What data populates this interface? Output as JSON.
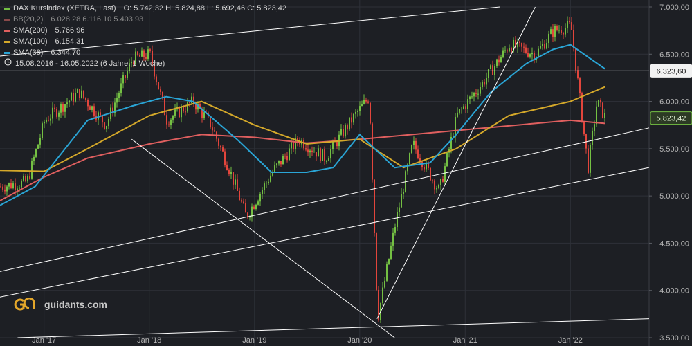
{
  "brand": "guidants.com",
  "legend": {
    "title": "DAX Kursindex (XETRA, Last)",
    "ohlc": "O: 5.742,32   H: 5.824,88   L: 5.692,46   C: 5.823,42",
    "indicators": [
      {
        "label": "BB(20,2)",
        "values": "6.028,28  6.116,10  5.403,93",
        "color": "#8a4a4a",
        "dim": true
      },
      {
        "label": "SMA(200)",
        "values": "5.766,96",
        "color": "#e05f5f",
        "dim": false
      },
      {
        "label": "SMA(100)",
        "values": "6.154,31",
        "color": "#d4a82a",
        "dim": false
      },
      {
        "label": "SMA(38)",
        "values": "6.344,70",
        "color": "#2aa5d6",
        "dim": false
      }
    ],
    "period": "15.08.2016 - 16.05.2022   (6 Jahre, 1 Woche)"
  },
  "chart_data": {
    "type": "candlestick",
    "title": "DAX Kursindex (XETRA, Last)",
    "ylim": [
      3500,
      7000
    ],
    "y_ticks": [
      "7.000,00",
      "6.500,00",
      "6.000,00",
      "5.500,00",
      "5.000,00",
      "4.500,00",
      "4.000,00",
      "3.500,00"
    ],
    "x_ticks": [
      "Jan '17",
      "Jan '18",
      "Jan '19",
      "Jan '20",
      "Jan '21",
      "Jan '22"
    ],
    "ohlc_last": {
      "open": 5742.32,
      "high": 5824.88,
      "low": 5692.46,
      "close": 5823.42
    },
    "price_labels": [
      {
        "value": 6323.6,
        "text": "6.323,60",
        "style": "white"
      },
      {
        "value": 5823.42,
        "text": "5.823,42",
        "style": "green"
      }
    ],
    "price_path": [
      {
        "date": "2016-08",
        "value": 5100
      },
      {
        "date": "2016-11",
        "value": 5150
      },
      {
        "date": "2017-01",
        "value": 5800
      },
      {
        "date": "2017-05",
        "value": 6100
      },
      {
        "date": "2017-08",
        "value": 5750
      },
      {
        "date": "2017-11",
        "value": 6450
      },
      {
        "date": "2018-01",
        "value": 6500
      },
      {
        "date": "2018-03",
        "value": 5800
      },
      {
        "date": "2018-06",
        "value": 6000
      },
      {
        "date": "2018-08",
        "value": 5750
      },
      {
        "date": "2018-10",
        "value": 5300
      },
      {
        "date": "2018-12",
        "value": 4780
      },
      {
        "date": "2019-03",
        "value": 5250
      },
      {
        "date": "2019-06",
        "value": 5600
      },
      {
        "date": "2019-09",
        "value": 5400
      },
      {
        "date": "2019-12",
        "value": 5800
      },
      {
        "date": "2020-02",
        "value": 6050
      },
      {
        "date": "2020-03",
        "value": 3700
      },
      {
        "date": "2020-05",
        "value": 4700
      },
      {
        "date": "2020-07",
        "value": 5550
      },
      {
        "date": "2020-10",
        "value": 5050
      },
      {
        "date": "2020-12",
        "value": 5850
      },
      {
        "date": "2021-03",
        "value": 6200
      },
      {
        "date": "2021-06",
        "value": 6600
      },
      {
        "date": "2021-09",
        "value": 6500
      },
      {
        "date": "2021-11",
        "value": 6750
      },
      {
        "date": "2022-01",
        "value": 6800
      },
      {
        "date": "2022-03",
        "value": 5300
      },
      {
        "date": "2022-04",
        "value": 6000
      },
      {
        "date": "2022-05",
        "value": 5823.42
      }
    ],
    "series": [
      {
        "name": "SMA(200)",
        "color": "#e05f5f",
        "values": [
          {
            "date": "2016-08",
            "value": 4950
          },
          {
            "date": "2017-01",
            "value": 5200
          },
          {
            "date": "2017-06",
            "value": 5400
          },
          {
            "date": "2018-01",
            "value": 5550
          },
          {
            "date": "2018-07",
            "value": 5650
          },
          {
            "date": "2019-01",
            "value": 5620
          },
          {
            "date": "2019-07",
            "value": 5560
          },
          {
            "date": "2020-01",
            "value": 5600
          },
          {
            "date": "2020-07",
            "value": 5650
          },
          {
            "date": "2021-01",
            "value": 5700
          },
          {
            "date": "2021-07",
            "value": 5750
          },
          {
            "date": "2022-01",
            "value": 5800
          },
          {
            "date": "2022-05",
            "value": 5766.96
          }
        ]
      },
      {
        "name": "SMA(100)",
        "color": "#d4a82a",
        "values": [
          {
            "date": "2016-08",
            "value": 5270
          },
          {
            "date": "2017-01",
            "value": 5260
          },
          {
            "date": "2017-06",
            "value": 5500
          },
          {
            "date": "2018-01",
            "value": 5850
          },
          {
            "date": "2018-07",
            "value": 6000
          },
          {
            "date": "2019-01",
            "value": 5750
          },
          {
            "date": "2019-07",
            "value": 5550
          },
          {
            "date": "2020-01",
            "value": 5600
          },
          {
            "date": "2020-06",
            "value": 5300
          },
          {
            "date": "2020-12",
            "value": 5500
          },
          {
            "date": "2021-06",
            "value": 5850
          },
          {
            "date": "2022-01",
            "value": 6000
          },
          {
            "date": "2022-05",
            "value": 6154.31
          }
        ]
      },
      {
        "name": "SMA(38)",
        "color": "#2aa5d6",
        "values": [
          {
            "date": "2016-08",
            "value": 4900
          },
          {
            "date": "2016-12",
            "value": 5100
          },
          {
            "date": "2017-06",
            "value": 5800
          },
          {
            "date": "2017-11",
            "value": 5950
          },
          {
            "date": "2018-03",
            "value": 6050
          },
          {
            "date": "2018-06",
            "value": 6000
          },
          {
            "date": "2018-11",
            "value": 5600
          },
          {
            "date": "2019-03",
            "value": 5250
          },
          {
            "date": "2019-07",
            "value": 5250
          },
          {
            "date": "2019-10",
            "value": 5300
          },
          {
            "date": "2020-01",
            "value": 5650
          },
          {
            "date": "2020-05",
            "value": 5300
          },
          {
            "date": "2020-09",
            "value": 5350
          },
          {
            "date": "2020-12",
            "value": 5650
          },
          {
            "date": "2021-04",
            "value": 6100
          },
          {
            "date": "2021-08",
            "value": 6400
          },
          {
            "date": "2021-11",
            "value": 6550
          },
          {
            "date": "2022-01",
            "value": 6600
          },
          {
            "date": "2022-05",
            "value": 6344.7
          }
        ]
      }
    ],
    "trendlines": [
      {
        "from": {
          "date": "2016-08",
          "value": 6480
        },
        "to": {
          "date": "2021-05",
          "value": 7000
        }
      },
      {
        "from": {
          "date": "2016-08",
          "value": 4200
        },
        "to": {
          "date": "2022-10",
          "value": 5720
        }
      },
      {
        "from": {
          "date": "2016-08",
          "value": 3930
        },
        "to": {
          "date": "2022-10",
          "value": 5300
        }
      },
      {
        "from": {
          "date": "2016-10",
          "value": 3500
        },
        "to": {
          "date": "2022-10",
          "value": 3700
        }
      },
      {
        "from": {
          "date": "2017-11",
          "value": 5600
        },
        "to": {
          "date": "2020-05",
          "value": 3500
        }
      },
      {
        "from": {
          "date": "2020-03",
          "value": 3700
        },
        "to": {
          "date": "2021-09",
          "value": 7000
        }
      }
    ],
    "hline": 6323.6,
    "grid": true,
    "legend_position": "top-left"
  },
  "colors": {
    "background": "#1d1f24",
    "grid": "#2e3138",
    "axis_text": "#b7b7b7",
    "up": "#74c043",
    "down": "#e2453c",
    "lines": "#ffffff",
    "label_green": "#74c043"
  }
}
